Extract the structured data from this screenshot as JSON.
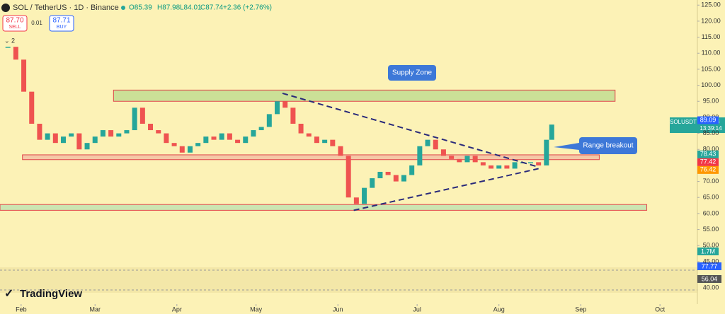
{
  "chart_data": {
    "type": "candlestick",
    "header": {
      "symbol": "SOL / TetherUS · 1D · Binance",
      "open": "O85.39",
      "high": "H87.98",
      "low": "L84.01",
      "close": "C87.74",
      "change": "+2.36 (+2.76%)"
    },
    "trade": {
      "sell_price": "87.70",
      "sell": "SELL",
      "spread": "0.01",
      "buy_price": "87.71",
      "buy": "BUY",
      "layers": "2"
    },
    "x": [
      -5,
      -2,
      1,
      4,
      7,
      10,
      13,
      16,
      19,
      22,
      25,
      28,
      31,
      34,
      37,
      40,
      43,
      46,
      49,
      52,
      55,
      58,
      61,
      64,
      67,
      70,
      73,
      76,
      79,
      82,
      85,
      88,
      91,
      94,
      97,
      100,
      103,
      106,
      109,
      112,
      115,
      118,
      121,
      124,
      127,
      130,
      133,
      136,
      139,
      142,
      145,
      148,
      151,
      154,
      157,
      160,
      163,
      166,
      169,
      172,
      175,
      178,
      181,
      184,
      187,
      190,
      193,
      196,
      199,
      201
    ],
    "values": [
      112,
      108,
      98,
      88,
      83,
      85,
      82,
      84,
      85,
      80,
      82,
      84,
      86,
      84,
      85,
      86,
      93,
      88,
      86,
      85,
      82,
      81,
      79,
      81,
      82,
      84,
      83,
      85,
      83,
      82,
      84,
      86,
      87,
      91,
      95,
      93,
      88,
      85,
      84,
      82,
      83,
      81,
      78,
      65,
      63,
      68,
      71,
      73,
      72,
      70,
      72,
      75,
      81,
      83,
      80,
      78,
      77,
      76,
      78,
      76,
      75,
      74,
      75,
      74,
      76,
      76,
      76,
      75,
      83,
      87.74
    ],
    "xlim": [
      -8,
      250
    ],
    "xticks": [
      {
        "value": 0,
        "label": "Feb"
      },
      {
        "value": 28,
        "label": "Mar"
      },
      {
        "value": 59,
        "label": "Apr"
      },
      {
        "value": 89,
        "label": "May"
      },
      {
        "value": 120,
        "label": "Jun"
      },
      {
        "value": 150,
        "label": "Jul"
      },
      {
        "value": 181,
        "label": "Aug"
      },
      {
        "value": 212,
        "label": "Sep"
      },
      {
        "value": 242,
        "label": "Oct"
      }
    ],
    "ylim": [
      38.8,
      126.6
    ],
    "yticks": [
      {
        "value": 125,
        "label": "125.00"
      },
      {
        "value": 120,
        "label": "120.00"
      },
      {
        "value": 115,
        "label": "115.00"
      },
      {
        "value": 110,
        "label": "110.00"
      },
      {
        "value": 105,
        "label": "105.00"
      },
      {
        "value": 100,
        "label": "100.00"
      },
      {
        "value": 95,
        "label": "95.00"
      },
      {
        "value": 90,
        "label": "90.00"
      },
      {
        "value": 85,
        "label": "85.00"
      },
      {
        "value": 80,
        "label": "80.00"
      },
      {
        "value": 75,
        "label": "75.00"
      },
      {
        "value": 70,
        "label": "70.00"
      },
      {
        "value": 65,
        "label": "65.00"
      },
      {
        "value": 60,
        "label": "60.00"
      },
      {
        "value": 55,
        "label": "55.00"
      },
      {
        "value": 50,
        "label": "50.00"
      },
      {
        "value": 45,
        "label": "45.00"
      }
    ],
    "up_color": "#26a69a",
    "down_color": "#ef5350",
    "zones": [
      {
        "x": [
          35,
          225
        ],
        "y": [
          95,
          98.5
        ],
        "color": "#b7d98a"
      },
      {
        "x": [
          0.5,
          219
        ],
        "y": [
          76.8,
          78.3
        ],
        "color": "#f2b6a0"
      },
      {
        "x": [
          -8,
          237
        ],
        "y": [
          61,
          62.8
        ],
        "color": "#b7e0b0"
      }
    ],
    "trendlines": [
      {
        "x": [
          99,
          196
        ],
        "y": [
          97.5,
          74.5
        ]
      },
      {
        "x": [
          126,
          196
        ],
        "y": [
          61,
          74
        ]
      }
    ],
    "annotations": [
      "Supply Zone",
      "Range breakout"
    ],
    "price_labels": [
      {
        "value": 89.09,
        "label": "89.09",
        "color": "#2962ff"
      },
      {
        "value": 78.43,
        "label": "78.43",
        "color": "#26a69a"
      },
      {
        "value": 77.42,
        "label": "77.42",
        "color": "#f23645"
      },
      {
        "value": 76.42,
        "label": "76.42",
        "color": "#ff9800"
      }
    ],
    "last_price": {
      "symbol": "SOLUSDT",
      "price": "87.74",
      "countdown": "13:39:14"
    },
    "volume_label": "1.7M",
    "rsi_labels": [
      "77.77",
      "56.04",
      "40.00"
    ],
    "brand": "TradingView"
  }
}
